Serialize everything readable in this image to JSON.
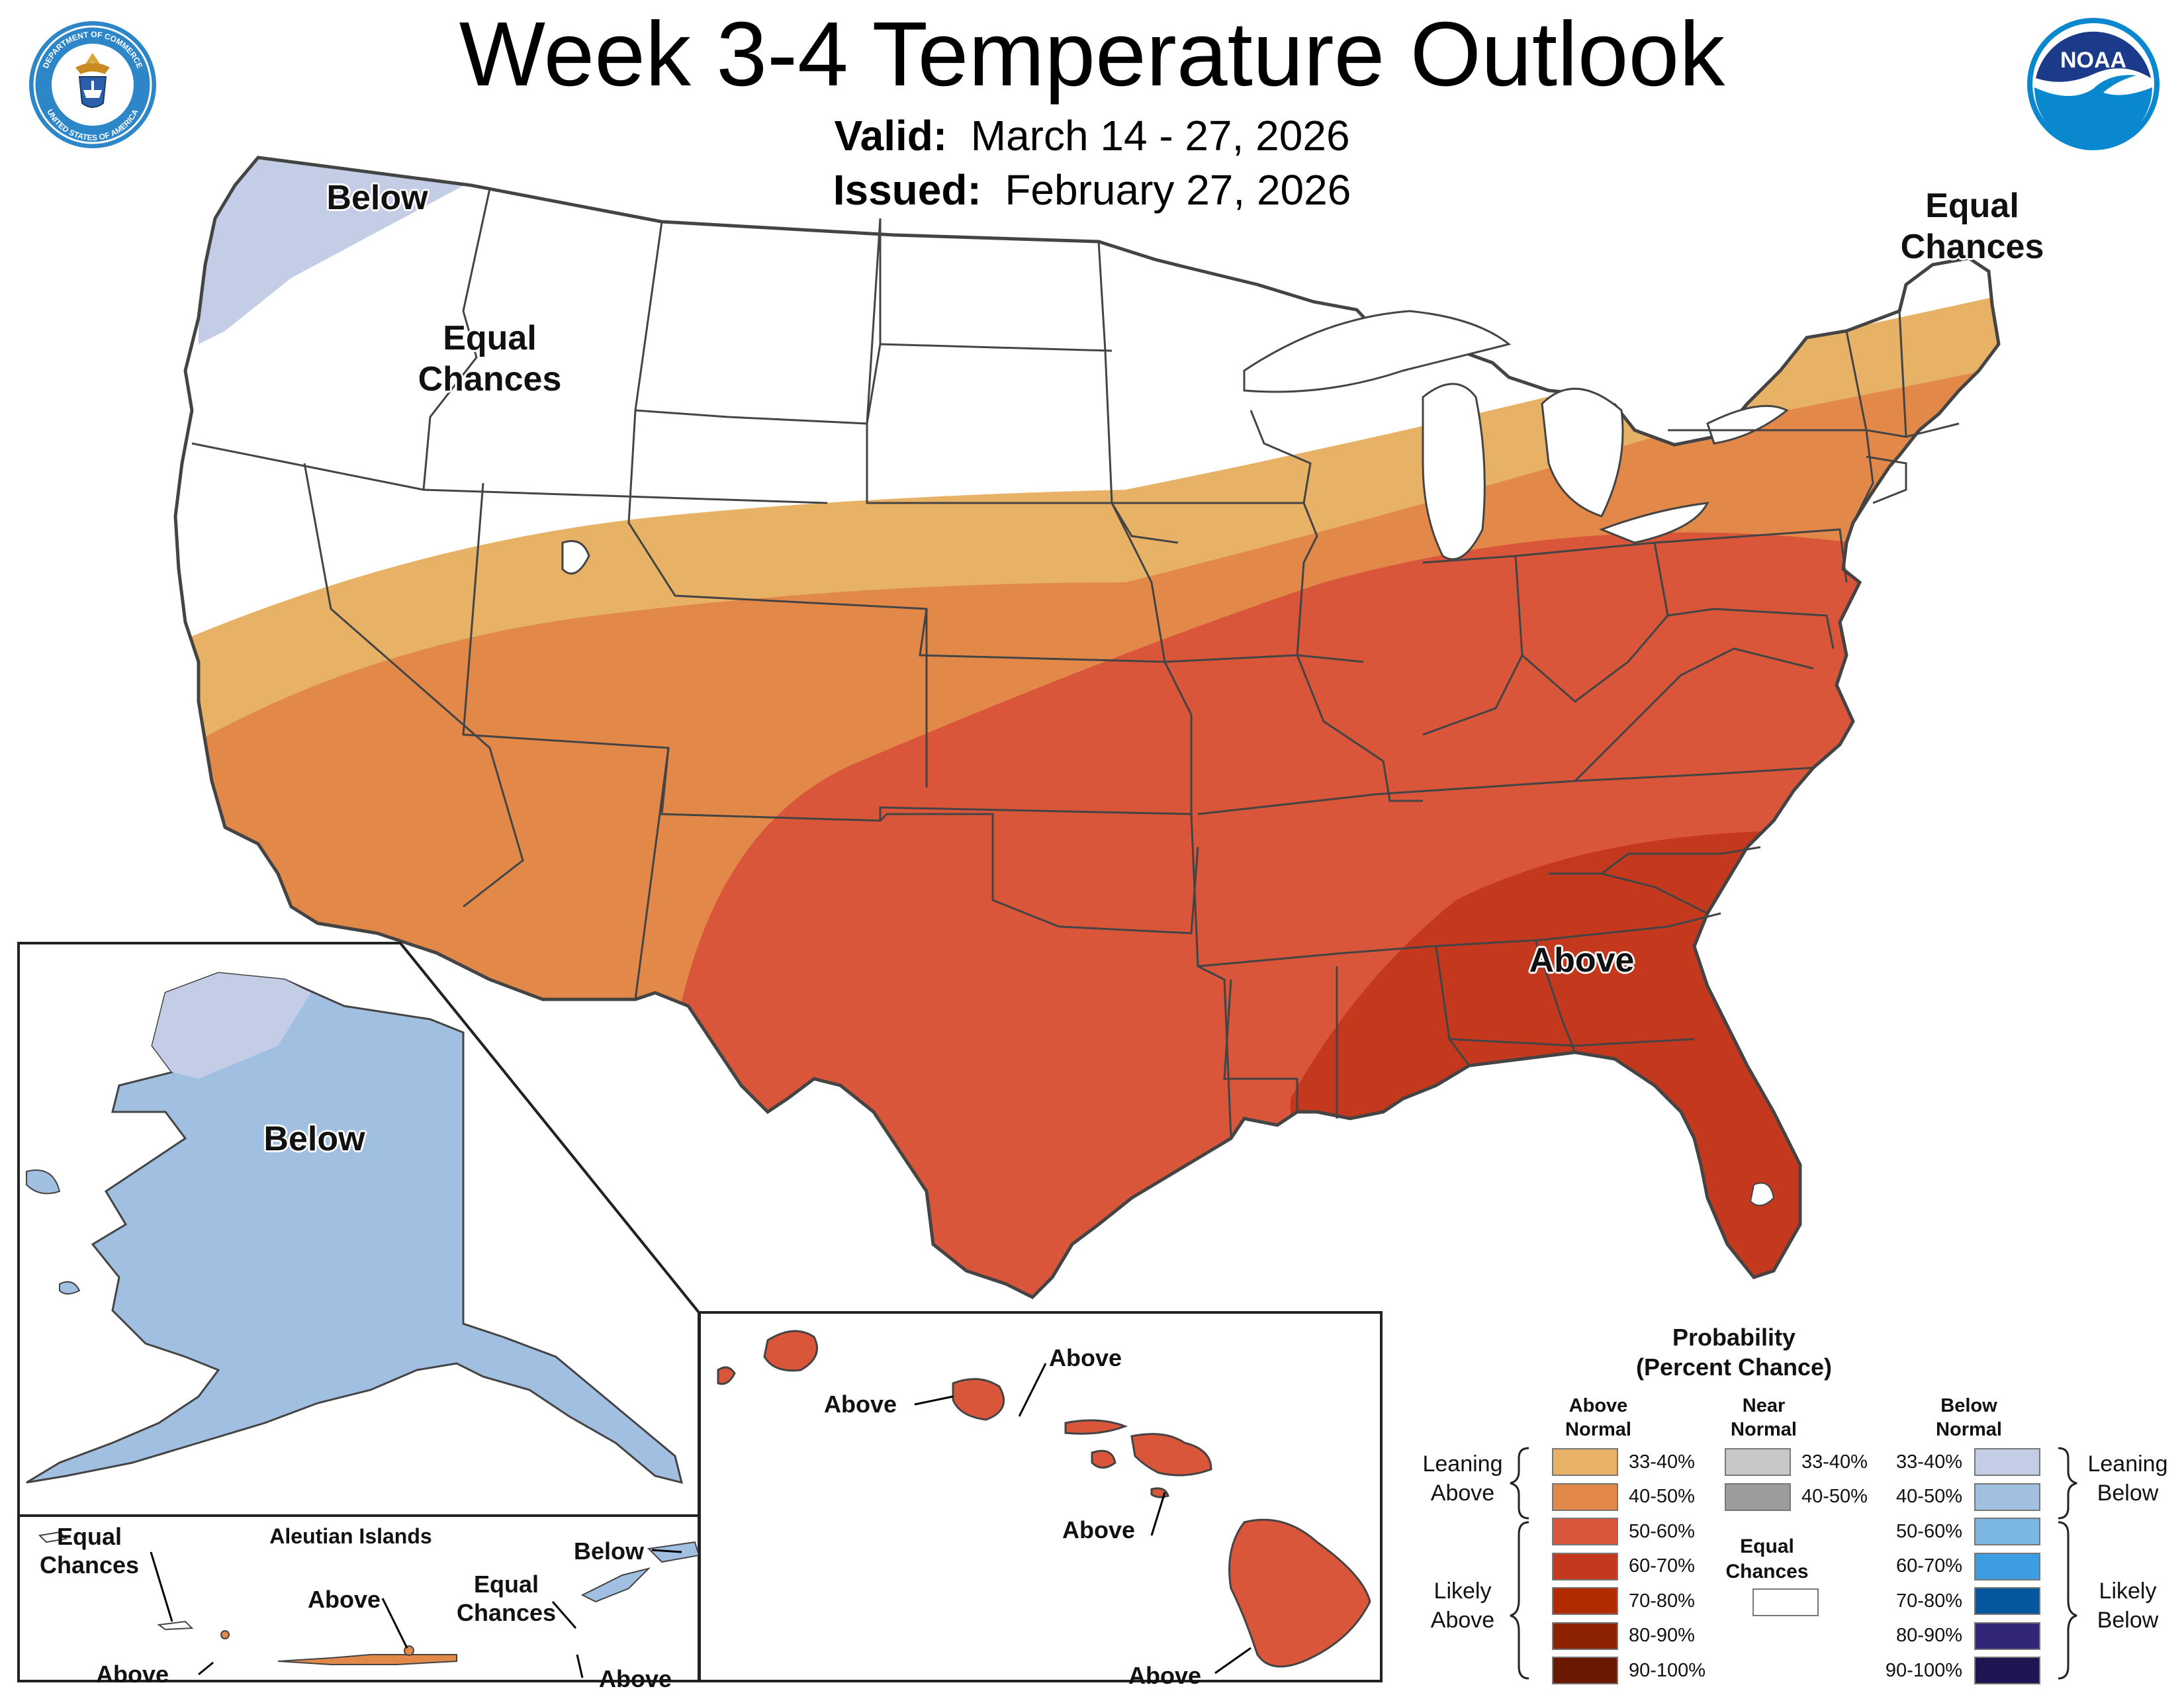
{
  "header": {
    "title": "Week 3-4 Temperature Outlook",
    "valid_label": "Valid:",
    "valid_value": "March 14 - 27, 2026",
    "issued_label": "Issued:",
    "issued_value": "February 27, 2026"
  },
  "logos": {
    "commerce_ring_top": "DEPARTMENT OF COMMERCE",
    "commerce_ring_bottom": "UNITED STATES OF AMERICA",
    "noaa_text": "NOAA"
  },
  "conus": {
    "label_below_nw": "Below",
    "label_ec_west": "Equal Chances",
    "label_ec_northeast": "Equal Chances",
    "label_above_se": "Above"
  },
  "alaska": {
    "label_below": "Below"
  },
  "aleutians": {
    "title": "Aleutian Islands",
    "label_equal_chances_left": "Equal Chances",
    "label_above_left": "Above",
    "label_above_mid": "Above",
    "label_equal_chances_mid": "Equal Chances",
    "label_below_right": "Below",
    "label_above_right": "Above"
  },
  "hawaii": {
    "label_above_1": "Above",
    "label_above_2": "Above",
    "label_above_3": "Above",
    "label_above_4": "Above"
  },
  "legend": {
    "title_line1": "Probability",
    "title_line2": "(Percent Chance)",
    "col_above": "Above Normal",
    "col_near": "Near Normal",
    "col_below": "Below Normal",
    "leaning_above": "Leaning Above",
    "likely_above": "Likely Above",
    "leaning_below": "Leaning Below",
    "likely_below": "Likely Below",
    "equal_chances": "Equal Chances",
    "above_bins": [
      {
        "label": "33-40%",
        "color": "#e7b166"
      },
      {
        "label": "40-50%",
        "color": "#e2894a"
      },
      {
        "label": "50-60%",
        "color": "#d9563a"
      },
      {
        "label": "60-70%",
        "color": "#c4381e"
      },
      {
        "label": "70-80%",
        "color": "#b12a00"
      },
      {
        "label": "80-90%",
        "color": "#8c2200"
      },
      {
        "label": "90-100%",
        "color": "#6a1800"
      }
    ],
    "near_bins": [
      {
        "label": "33-40%",
        "color": "#c8c8c8"
      },
      {
        "label": "40-50%",
        "color": "#9c9c9c"
      }
    ],
    "below_bins": [
      {
        "label": "33-40%",
        "color": "#c4cde6"
      },
      {
        "label": "40-50%",
        "color": "#a1bfe0"
      },
      {
        "label": "50-60%",
        "color": "#7cb6e3"
      },
      {
        "label": "60-70%",
        "color": "#3e9ce0"
      },
      {
        "label": "70-80%",
        "color": "#05589e"
      },
      {
        "label": "80-90%",
        "color": "#302577"
      },
      {
        "label": "90-100%",
        "color": "#201552"
      }
    ]
  }
}
